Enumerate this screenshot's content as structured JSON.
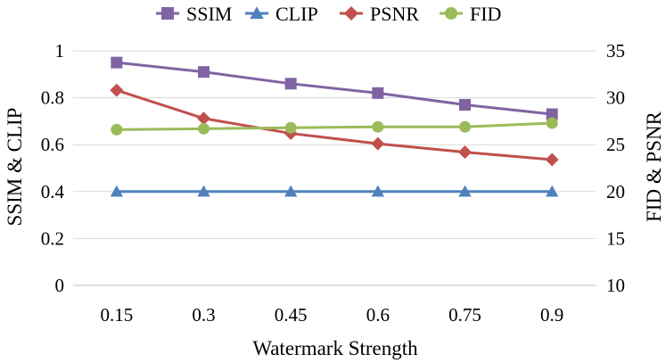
{
  "chart_data": {
    "type": "line",
    "title": "",
    "xlabel": "Watermark Strength",
    "ylabel_left": "SSIM & CLIP",
    "ylabel_right": "FID & PSNR",
    "categories": [
      "0.15",
      "0.3",
      "0.45",
      "0.6",
      "0.75",
      "0.9"
    ],
    "ylim_left": [
      0,
      1
    ],
    "yticks_left": [
      "0",
      "0.2",
      "0.4",
      "0.6",
      "0.8",
      "1"
    ],
    "ylim_right": [
      10,
      35
    ],
    "yticks_right": [
      "10",
      "15",
      "20",
      "25",
      "30",
      "35"
    ],
    "grid": true,
    "legend_position": "top",
    "series": [
      {
        "name": "SSIM",
        "axis": "left",
        "marker": "square",
        "color": "#8064A2",
        "values": [
          0.95,
          0.91,
          0.86,
          0.82,
          0.77,
          0.73
        ]
      },
      {
        "name": "CLIP",
        "axis": "left",
        "marker": "triangle",
        "color": "#4F81BD",
        "values": [
          0.4,
          0.4,
          0.4,
          0.4,
          0.4,
          0.4
        ]
      },
      {
        "name": "PSNR",
        "axis": "right",
        "marker": "diamond",
        "color": "#C0504D",
        "values": [
          30.8,
          27.8,
          26.2,
          25.1,
          24.2,
          23.4
        ]
      },
      {
        "name": "FID",
        "axis": "right",
        "marker": "circle",
        "color": "#9BBB59",
        "values": [
          26.6,
          26.7,
          26.8,
          26.9,
          26.9,
          27.3
        ]
      }
    ]
  }
}
